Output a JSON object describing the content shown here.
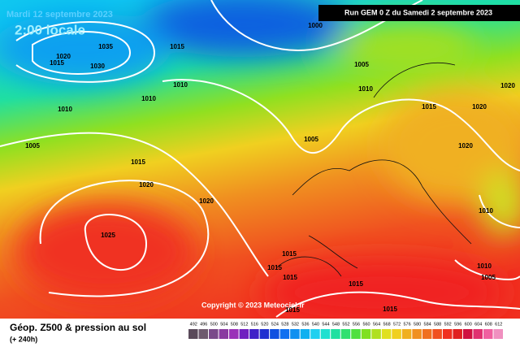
{
  "date": "Mardi 12 septembre 2023",
  "time": "2:00 locale",
  "run": "Run GEM 0 Z du Samedi 2 septembre 2023",
  "copyright": "Copyright © 2023 Meteociel.fr",
  "legend": {
    "title": "Géop. Z500 & pression au sol",
    "lead": "(+ 240h)",
    "levels": [
      492,
      496,
      500,
      504,
      508,
      512,
      516,
      520,
      524,
      528,
      532,
      536,
      540,
      544,
      548,
      552,
      556,
      560,
      564,
      568,
      572,
      576,
      580,
      584,
      588,
      592,
      596,
      600,
      604,
      608,
      612
    ],
    "colors": [
      "#5a4a5a",
      "#6e5a6e",
      "#7a4a8a",
      "#8a3aa0",
      "#9a30b8",
      "#7020c0",
      "#4020c8",
      "#2030d0",
      "#1050e0",
      "#1070f0",
      "#1090f0",
      "#10b0f0",
      "#20d0f0",
      "#20e0d0",
      "#20e0a0",
      "#30e070",
      "#50e040",
      "#80e020",
      "#b0e020",
      "#e0e020",
      "#f0d020",
      "#f0b020",
      "#f09020",
      "#f07020",
      "#f05020",
      "#f03020",
      "#e02020",
      "#d01040",
      "#e03070",
      "#f060a0",
      "#f090c0"
    ]
  },
  "isobars": [
    1035,
    1030,
    1020,
    1015,
    1015,
    1000,
    1005,
    1010,
    1010,
    1010,
    1010,
    1005,
    1015,
    1020,
    1005,
    1015,
    1020,
    1020,
    1020,
    1020,
    1025,
    1010,
    1015,
    1015,
    1015,
    1015,
    1010,
    1005,
    1015,
    1015
  ]
}
